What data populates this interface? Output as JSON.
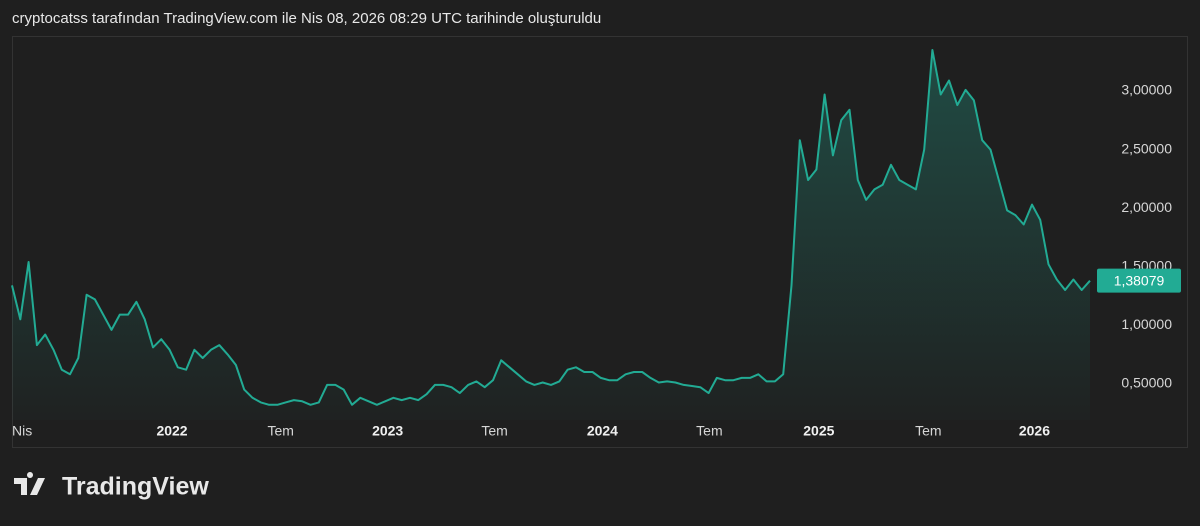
{
  "chart_data": {
    "type": "area",
    "title": "cryptocatss tarafından TradingView.com ile Nis 08, 2026 08:29 UTC tarihinde oluşturuldu",
    "logo": "TradingView",
    "color": "#22ab94",
    "values": [
      1.34,
      1.05,
      1.54,
      0.83,
      0.92,
      0.79,
      0.62,
      0.58,
      0.72,
      1.26,
      1.22,
      1.09,
      0.96,
      1.09,
      1.09,
      1.2,
      1.05,
      0.81,
      0.88,
      0.79,
      0.64,
      0.62,
      0.79,
      0.72,
      0.79,
      0.83,
      0.75,
      0.66,
      0.45,
      0.38,
      0.34,
      0.32,
      0.32,
      0.34,
      0.36,
      0.35,
      0.32,
      0.34,
      0.49,
      0.49,
      0.45,
      0.32,
      0.38,
      0.35,
      0.32,
      0.35,
      0.38,
      0.36,
      0.38,
      0.36,
      0.41,
      0.49,
      0.49,
      0.47,
      0.42,
      0.49,
      0.52,
      0.47,
      0.53,
      0.7,
      0.64,
      0.58,
      0.52,
      0.49,
      0.51,
      0.49,
      0.52,
      0.62,
      0.64,
      0.6,
      0.6,
      0.55,
      0.53,
      0.53,
      0.58,
      0.6,
      0.6,
      0.55,
      0.51,
      0.52,
      0.51,
      0.49,
      0.48,
      0.47,
      0.42,
      0.55,
      0.53,
      0.53,
      0.55,
      0.55,
      0.58,
      0.52,
      0.52,
      0.58,
      1.34,
      2.58,
      2.24,
      2.33,
      2.97,
      2.45,
      2.75,
      2.84,
      2.24,
      2.07,
      2.16,
      2.2,
      2.37,
      2.24,
      2.2,
      2.16,
      2.5,
      3.35,
      2.97,
      3.09,
      2.88,
      3.01,
      2.92,
      2.58,
      2.5,
      2.24,
      1.98,
      1.94,
      1.86,
      2.03,
      1.9,
      1.52,
      1.39,
      1.3,
      1.39,
      1.3,
      1.38
    ],
    "xlim": [
      0,
      130
    ],
    "xticks": [
      {
        "value": 0,
        "label": "Nis"
      },
      {
        "value": 19.3,
        "label": "2022"
      },
      {
        "value": 32.4,
        "label": "Tem"
      },
      {
        "value": 45.3,
        "label": "2023"
      },
      {
        "value": 58.2,
        "label": "Tem"
      },
      {
        "value": 71.2,
        "label": "2024"
      },
      {
        "value": 84.1,
        "label": "Tem"
      },
      {
        "value": 97.3,
        "label": "2025"
      },
      {
        "value": 110.5,
        "label": "Tem"
      },
      {
        "value": 123.3,
        "label": "2026"
      }
    ],
    "ylim": [
      0.19,
      3.47
    ],
    "yticks": [
      {
        "value": 0.5,
        "label": "0,50000"
      },
      {
        "value": 1,
        "label": "1,00000"
      },
      {
        "value": 1.5,
        "label": "1,50000"
      },
      {
        "value": 2,
        "label": "2,00000"
      },
      {
        "value": 2.5,
        "label": "2,50000"
      },
      {
        "value": 3,
        "label": "3,00000"
      }
    ],
    "price_label": {
      "value": 1.38079,
      "label": "1,38079"
    }
  }
}
